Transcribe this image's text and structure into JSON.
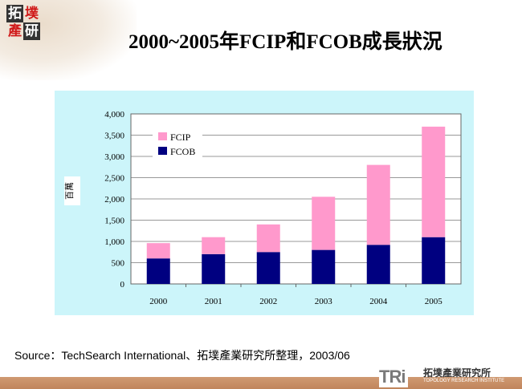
{
  "slide": {
    "logo_text": [
      "拓",
      "墣",
      "產",
      "研"
    ],
    "title": "2000~2005年FCIP和FCOB成長狀況",
    "source": "Source：TechSearch International、拓墣產業研究所整理，2003/06",
    "footer_logo": "TRi",
    "footer_org_zh": "拓墣產業研究所",
    "footer_org_en": "TOPOLOGY RESEARCH INSTITUTE"
  },
  "chart_data": {
    "type": "bar",
    "stacked": true,
    "title": "",
    "xlabel": "",
    "ylabel": "百萬",
    "ylim": [
      0,
      4000
    ],
    "yticks": [
      0,
      500,
      1000,
      1500,
      2000,
      2500,
      3000,
      3500,
      4000
    ],
    "ytick_labels": [
      "0",
      "500",
      "1,000",
      "1,500",
      "2,000",
      "2,500",
      "3,000",
      "3,500",
      "4,000"
    ],
    "categories": [
      "2000",
      "2001",
      "2002",
      "2003",
      "2004",
      "2005"
    ],
    "series": [
      {
        "name": "FCOB",
        "color": "#000080",
        "values": [
          600,
          700,
          750,
          800,
          920,
          1100
        ]
      },
      {
        "name": "FCIP",
        "color": "#ff99cc",
        "values": [
          360,
          400,
          650,
          1250,
          1880,
          2600
        ]
      }
    ],
    "legend": {
      "entries": [
        "FCIP",
        "FCOB"
      ],
      "placement": "top-left"
    },
    "grid": true,
    "background": "#ccf5fa"
  }
}
